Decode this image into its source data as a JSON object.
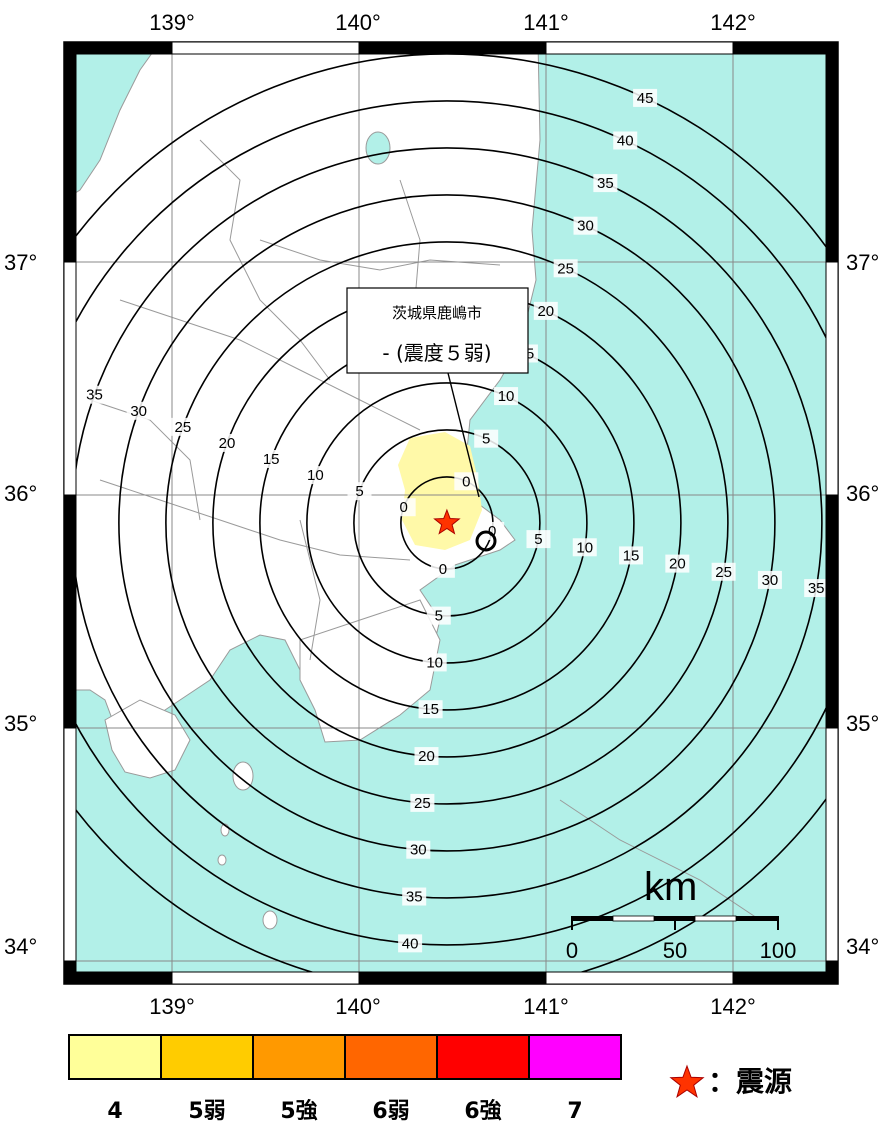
{
  "map": {
    "lon_ticks": [
      "139°",
      "140°",
      "141°",
      "142°"
    ],
    "lat_ticks": [
      "37°",
      "36°",
      "35°",
      "34°"
    ],
    "epicenter": {
      "lon": 140.47,
      "lat": 35.88
    },
    "colors": {
      "sea": "#b2f0e8",
      "land": "#ffffff",
      "intensity4_area": "#fff9a8"
    },
    "rings": [
      {
        "label": "0"
      },
      {
        "label": "5"
      },
      {
        "label": "10"
      },
      {
        "label": "15"
      },
      {
        "label": "20"
      },
      {
        "label": "25"
      },
      {
        "label": "30"
      },
      {
        "label": "35"
      },
      {
        "label": "40"
      },
      {
        "label": "45"
      }
    ]
  },
  "callout": {
    "place": "茨城県鹿嶋市",
    "intensity": "- (震度５弱)"
  },
  "scale_bar": {
    "unit": "km",
    "ticks": [
      "0",
      "50",
      "100"
    ]
  },
  "legend": {
    "items": [
      {
        "label": "4",
        "color": "#ffff99"
      },
      {
        "label": "5弱",
        "color": "#ffcc00"
      },
      {
        "label": "5強",
        "color": "#ff9900"
      },
      {
        "label": "6弱",
        "color": "#ff6600"
      },
      {
        "label": "6強",
        "color": "#ff0000"
      },
      {
        "label": "7",
        "color": "#ff00ff"
      }
    ],
    "epicenter_label": "：震源"
  }
}
